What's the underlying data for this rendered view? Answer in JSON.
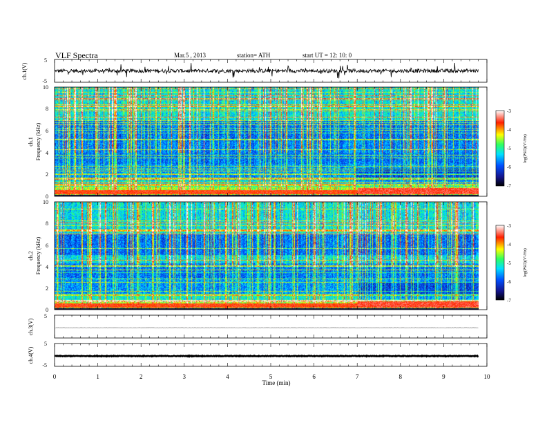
{
  "header": {
    "title": "VLF  Spectra",
    "date": "Mar.5  , 2013",
    "station": "station= ATH",
    "start": "start  UT  =    12: 10: 0"
  },
  "chart_data": [
    {
      "type": "line",
      "panel": "ch1-waveform",
      "ylabel": "ch.1(V)",
      "xlim": [
        0,
        10
      ],
      "ylim": [
        -5,
        5
      ],
      "yticks": [
        "5",
        "-5"
      ],
      "baseline": 0,
      "color": "#000000"
    },
    {
      "type": "heatmap",
      "panel": "ch1-spectrogram",
      "ylabel": "ch.1",
      "ylabel2": "Frequency  (kHz)",
      "xlim": [
        0,
        10
      ],
      "data_xmax": 9.8,
      "ylim": [
        0,
        10
      ],
      "yticks": [
        "0",
        "2",
        "4",
        "6",
        "8",
        "10"
      ],
      "colorbar": {
        "label": "log(PSD)(V²/Hz)",
        "range": [
          -7,
          -3
        ],
        "ticks": [
          "-3",
          "-4",
          "-5",
          "-6",
          "-7"
        ]
      }
    },
    {
      "type": "heatmap",
      "panel": "ch2-spectrogram",
      "ylabel": "ch.2",
      "ylabel2": "Frequency  (kHz)",
      "xlim": [
        0,
        10
      ],
      "data_xmax": 9.8,
      "ylim": [
        0,
        10
      ],
      "yticks": [
        "0",
        "2",
        "4",
        "6",
        "8",
        "10"
      ],
      "colorbar": {
        "label": "log(PSD)(V²/Hz)",
        "range": [
          -7,
          -3
        ],
        "ticks": [
          "-3",
          "-4",
          "-5",
          "-6",
          "-7"
        ]
      }
    },
    {
      "type": "line",
      "panel": "ch3-waveform",
      "ylabel": "ch.3(V)",
      "xlim": [
        0,
        10
      ],
      "ylim": [
        -5,
        5
      ],
      "yticks": [
        "5",
        "-5"
      ],
      "baseline": -0.5,
      "color": "#777777"
    },
    {
      "type": "line",
      "panel": "ch4-waveform",
      "ylabel": "ch.4(V)",
      "xlim": [
        0,
        10
      ],
      "ylim": [
        -5,
        5
      ],
      "yticks": [
        "5",
        "-5"
      ],
      "baseline": -0.5,
      "color": "#000000"
    }
  ],
  "xaxis": {
    "label": "Time  (min)",
    "ticks": [
      "0",
      "1",
      "2",
      "3",
      "4",
      "5",
      "6",
      "7",
      "8",
      "9",
      "10"
    ]
  },
  "colors": {
    "colormap": [
      "#000000",
      "#1a1aa0",
      "#0050ff",
      "#00e0ff",
      "#30ff60",
      "#ffff00",
      "#ff3000",
      "#ffffff"
    ]
  }
}
